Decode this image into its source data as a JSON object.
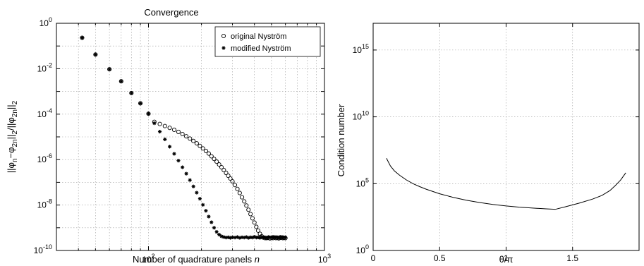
{
  "chart_data": [
    {
      "type": "scatter",
      "title": "Convergence",
      "xlabel": "Number of quadrature panels n",
      "ylabel": "||φn−φ2n||2/||φ2n||2",
      "xscale": "log",
      "yscale": "log",
      "xlim": [
        30,
        1000
      ],
      "ylim": [
        1e-10,
        1
      ],
      "grid": true,
      "legend_position": "top-right",
      "x_tick_labels": [
        {
          "value": 100,
          "base": "10",
          "exp": "2"
        },
        {
          "value": 1000,
          "base": "10",
          "exp": "3"
        }
      ],
      "y_tick_labels": [
        {
          "value": 1,
          "base": "10",
          "exp": "0"
        },
        {
          "value": 0.01,
          "base": "10",
          "exp": "-2"
        },
        {
          "value": 0.0001,
          "base": "10",
          "exp": "-4"
        },
        {
          "value": 1e-06,
          "base": "10",
          "exp": "-6"
        },
        {
          "value": 1e-08,
          "base": "10",
          "exp": "-8"
        },
        {
          "value": 1e-10,
          "base": "10",
          "exp": "-10"
        }
      ],
      "series": [
        {
          "name": "original Nyström",
          "marker": "open-circle",
          "x": [
            42,
            50,
            60,
            70,
            80,
            90,
            100,
            108,
            116,
            124,
            132,
            140,
            148,
            156,
            164,
            172,
            180,
            188,
            196,
            204,
            212,
            220,
            228,
            236,
            244,
            252,
            260,
            268,
            276,
            284,
            292,
            300,
            310,
            320,
            330,
            340,
            350,
            360,
            370,
            380,
            390,
            400,
            410,
            420,
            430,
            440,
            450,
            460,
            470,
            480,
            490,
            500,
            510,
            520,
            530,
            540,
            550,
            560,
            570,
            580,
            590,
            600
          ],
          "y": [
            0.23,
            0.042,
            0.0095,
            0.0028,
            0.00085,
            0.0003,
            0.000105,
            4.6e-05,
            3.7e-05,
            3e-05,
            2.5e-05,
            2.05e-05,
            1.66e-05,
            1.33e-05,
            1.06e-05,
            8.4e-06,
            6.6e-06,
            5.2e-06,
            4e-06,
            3.1e-06,
            2.4e-06,
            1.85e-06,
            1.4e-06,
            1.07e-06,
            8.1e-07,
            6.1e-07,
            4.6e-07,
            3.45e-07,
            2.6e-07,
            1.95e-07,
            1.47e-07,
            1.1e-07,
            7.6e-08,
            5.1e-08,
            3.4e-08,
            2.2e-08,
            1.45e-08,
            9.5e-09,
            6.2e-09,
            4e-09,
            2.6e-09,
            1.7e-09,
            1.1e-09,
            7.5e-10,
            5.4e-10,
            4.2e-10,
            3.7e-10,
            3.5e-10,
            3.5e-10,
            3.6e-10,
            3.4e-10,
            3.6e-10,
            3.5e-10,
            3.7e-10,
            3.5e-10,
            3.6e-10,
            3.4e-10,
            3.6e-10,
            3.7e-10,
            3.5e-10,
            3.6e-10,
            3.5e-10
          ]
        },
        {
          "name": "modified Nyström",
          "marker": "asterisk",
          "x": [
            42,
            50,
            60,
            70,
            80,
            90,
            100,
            108,
            116,
            124,
            132,
            140,
            148,
            156,
            164,
            172,
            180,
            188,
            196,
            204,
            212,
            220,
            228,
            236,
            244,
            252,
            260,
            268,
            276,
            284,
            292,
            300,
            310,
            320,
            330,
            340,
            350,
            360,
            370,
            380,
            390,
            400,
            410,
            420,
            430,
            440,
            450,
            460,
            470,
            480,
            490,
            500,
            510,
            520,
            530,
            540,
            550,
            560,
            570,
            580,
            590,
            600
          ],
          "y": [
            0.23,
            0.042,
            0.0095,
            0.0028,
            0.00085,
            0.0003,
            0.000105,
            4e-05,
            1.7e-05,
            7.8e-06,
            3.7e-06,
            1.8e-06,
            9e-07,
            4.6e-07,
            2.4e-07,
            1.25e-07,
            6.6e-08,
            3.5e-08,
            1.9e-08,
            1.02e-08,
            5.6e-09,
            3.1e-09,
            1.75e-09,
            1e-09,
            6.6e-10,
            5e-10,
            4.2e-10,
            3.9e-10,
            3.7e-10,
            3.8e-10,
            3.6e-10,
            3.8e-10,
            3.7e-10,
            3.9e-10,
            3.6e-10,
            3.8e-10,
            3.7e-10,
            3.9e-10,
            3.6e-10,
            3.8e-10,
            3.7e-10,
            4e-10,
            3.7e-10,
            3.8e-10,
            3.6e-10,
            3.9e-10,
            3.7e-10,
            3.8e-10,
            3.6e-10,
            3.9e-10,
            3.8e-10,
            3.7e-10,
            4e-10,
            3.7e-10,
            3.9e-10,
            3.8e-10,
            3.6e-10,
            4e-10,
            3.8e-10,
            3.9e-10,
            3.7e-10,
            3.8e-10
          ]
        }
      ]
    },
    {
      "type": "line",
      "title": "",
      "xlabel": "θ/π",
      "ylabel": "Condition number",
      "xscale": "linear",
      "yscale": "log",
      "xlim": [
        0,
        2
      ],
      "ylim": [
        1,
        1e+17
      ],
      "grid": true,
      "x_tick_labels": [
        {
          "value": 0,
          "text": "0"
        },
        {
          "value": 0.5,
          "text": "0.5"
        },
        {
          "value": 1,
          "text": "1"
        },
        {
          "value": 1.5,
          "text": "1.5"
        }
      ],
      "y_tick_labels": [
        {
          "value": 1,
          "base": "10",
          "exp": "0"
        },
        {
          "value": 100000,
          "base": "10",
          "exp": "5"
        },
        {
          "value": 10000000000.0,
          "base": "10",
          "exp": "10"
        },
        {
          "value": 1000000000000000.0,
          "base": "10",
          "exp": "15"
        }
      ],
      "series": [
        {
          "x": [
            0.1,
            0.13,
            0.16,
            0.2,
            0.25,
            0.3,
            0.35,
            0.4,
            0.5,
            0.6,
            0.7,
            0.8,
            0.9,
            1.0,
            1.1,
            1.2,
            1.3,
            1.37,
            1.45,
            1.55,
            1.65,
            1.72,
            1.78,
            1.82,
            1.86,
            1.9
          ],
          "y": [
            8000000.0,
            2100000.0,
            900000.0,
            420000.0,
            190000.0,
            100000.0,
            60000.0,
            38000.0,
            17500.0,
            9500.0,
            5800.0,
            3900.0,
            2800.0,
            2150.0,
            1750.0,
            1500.0,
            1300.0,
            1200.0,
            1900.0,
            3500.0,
            7000.0,
            13000.0,
            30000.0,
            70000.0,
            180000.0,
            650000.0
          ]
        }
      ]
    }
  ]
}
